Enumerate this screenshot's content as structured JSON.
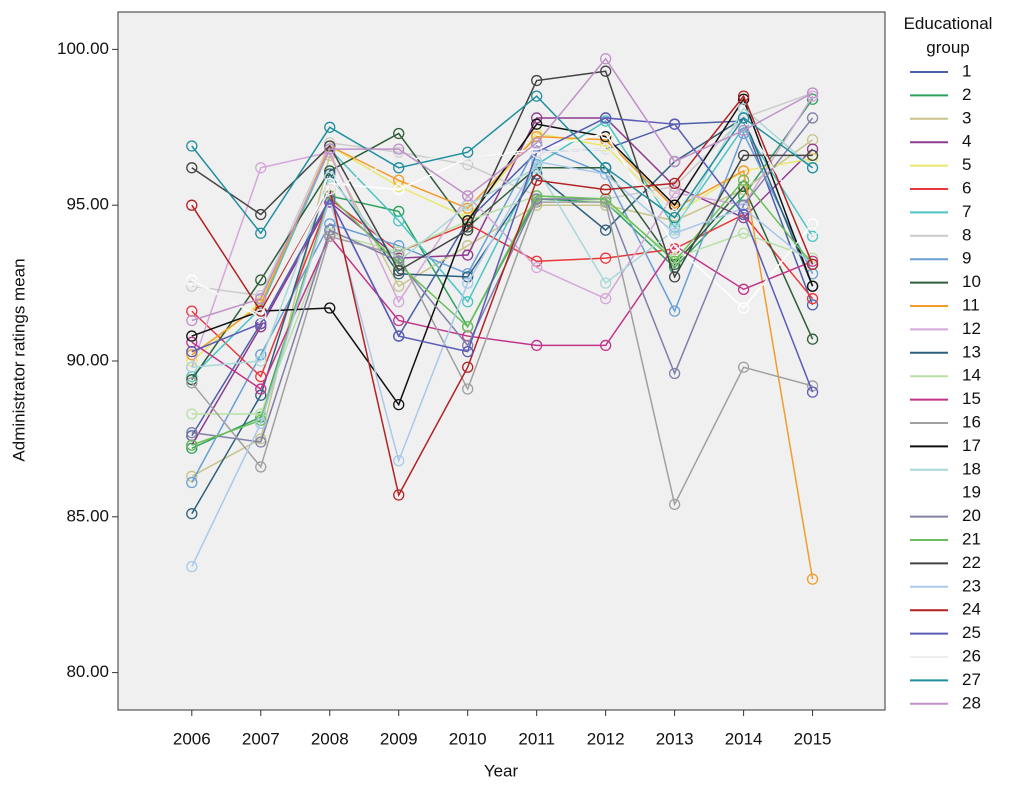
{
  "chart_data": {
    "type": "line",
    "x_label": "Year",
    "y_label": "Administrator ratings mean",
    "legend_title": "Educational group",
    "categories": [
      "2006",
      "2007",
      "2008",
      "2009",
      "2010",
      "2011",
      "2012",
      "2013",
      "2014",
      "2015"
    ],
    "ylim": [
      78.8,
      101.2
    ],
    "yticks": [
      {
        "value": 80,
        "label": "80.00"
      },
      {
        "value": 85,
        "label": "85.00"
      },
      {
        "value": 90,
        "label": "90.00"
      },
      {
        "value": 95,
        "label": "95.00"
      },
      {
        "value": 100,
        "label": "100.00"
      }
    ],
    "background": "#f0f0f0",
    "legend_position": "right",
    "series": [
      {
        "name": "1",
        "color": "#4c5fa8",
        "values": [
          87.6,
          91.2,
          95.2,
          90.8,
          94.5,
          96.7,
          96.8,
          97.6,
          97.7,
          91.8
        ]
      },
      {
        "name": "2",
        "color": "#2ca25f",
        "values": [
          87.2,
          88.2,
          95.3,
          94.8,
          91.1,
          95.2,
          95.1,
          93.0,
          95.3,
          98.4
        ]
      },
      {
        "name": "3",
        "color": "#c8c48a",
        "values": [
          86.3,
          87.5,
          96.6,
          92.4,
          93.7,
          95.0,
          95.0,
          94.5,
          95.5,
          97.1
        ]
      },
      {
        "name": "4",
        "color": "#8e3b8e",
        "values": [
          87.3,
          91.1,
          95.1,
          93.3,
          93.4,
          97.8,
          97.8,
          95.6,
          94.6,
          96.8
        ]
      },
      {
        "name": "5",
        "color": "#e8e86e",
        "values": [
          90.0,
          91.9,
          96.9,
          95.6,
          94.6,
          97.3,
          96.9,
          94.7,
          96.1,
          96.5
        ]
      },
      {
        "name": "6",
        "color": "#e8383d",
        "values": [
          91.6,
          89.5,
          95.2,
          93.5,
          94.4,
          93.2,
          93.3,
          93.6,
          94.7,
          92.0
        ]
      },
      {
        "name": "7",
        "color": "#4cc4c4",
        "values": [
          89.5,
          91.7,
          96.8,
          94.5,
          91.9,
          96.3,
          97.7,
          94.3,
          97.5,
          94.0
        ]
      },
      {
        "name": "8",
        "color": "#cccccc",
        "values": [
          92.4,
          92.1,
          97.0,
          96.7,
          96.3,
          95.3,
          95.2,
          95.6,
          97.8,
          98.6
        ]
      },
      {
        "name": "9",
        "color": "#6a9ed6",
        "values": [
          86.1,
          90.2,
          94.4,
          93.7,
          92.8,
          96.9,
          96.0,
          91.6,
          97.3,
          92.8
        ]
      },
      {
        "name": "10",
        "color": "#2f5e3a",
        "values": [
          89.4,
          92.6,
          96.1,
          97.3,
          94.3,
          96.2,
          96.2,
          93.1,
          95.6,
          90.7
        ]
      },
      {
        "name": "11",
        "color": "#f39c2b",
        "values": [
          90.2,
          91.8,
          96.9,
          95.8,
          94.9,
          97.2,
          97.1,
          94.9,
          96.1,
          83.0
        ]
      },
      {
        "name": "12",
        "color": "#d4a7d9",
        "values": [
          89.8,
          96.2,
          96.7,
          91.9,
          95.3,
          93.0,
          92.0,
          95.4,
          95.0,
          98.5
        ]
      },
      {
        "name": "13",
        "color": "#2f5f7f",
        "values": [
          85.1,
          88.9,
          96.0,
          92.8,
          92.7,
          96.0,
          94.2,
          96.4,
          97.8,
          92.4
        ]
      },
      {
        "name": "14",
        "color": "#b9e0a5",
        "values": [
          88.3,
          88.3,
          94.1,
          93.5,
          94.5,
          95.3,
          95.1,
          93.3,
          94.1,
          93.3
        ]
      },
      {
        "name": "15",
        "color": "#c2338a",
        "values": [
          90.6,
          89.1,
          94.0,
          91.3,
          90.8,
          90.5,
          90.5,
          93.7,
          92.3,
          93.2
        ]
      },
      {
        "name": "16",
        "color": "#a0a0a0",
        "values": [
          89.3,
          86.6,
          94.0,
          93.4,
          89.1,
          95.1,
          95.1,
          85.4,
          89.8,
          89.2
        ]
      },
      {
        "name": "17",
        "color": "#111111",
        "values": [
          90.8,
          91.6,
          91.7,
          88.6,
          94.5,
          97.6,
          97.2,
          95.0,
          98.4,
          92.4
        ]
      },
      {
        "name": "18",
        "color": "#a8d8d8",
        "values": [
          89.8,
          90.0,
          95.9,
          93.2,
          95.0,
          96.2,
          92.5,
          94.2,
          98.1,
          96.2
        ]
      },
      {
        "name": "19",
        "color": "#ffffff",
        "values": [
          92.6,
          91.4,
          95.7,
          95.5,
          96.5,
          96.8,
          97.3,
          93.7,
          91.7,
          94.4
        ]
      },
      {
        "name": "20",
        "color": "#8080a8",
        "values": [
          87.7,
          87.4,
          94.2,
          93.2,
          90.5,
          95.2,
          95.2,
          89.6,
          95.0,
          97.8
        ]
      },
      {
        "name": "21",
        "color": "#6bbf59",
        "values": [
          87.3,
          88.1,
          95.3,
          93.1,
          91.1,
          95.3,
          95.2,
          93.2,
          95.8,
          93.1
        ]
      },
      {
        "name": "22",
        "color": "#444444",
        "values": [
          96.2,
          94.7,
          96.9,
          92.9,
          94.2,
          99.0,
          99.3,
          92.7,
          96.6,
          96.6
        ]
      },
      {
        "name": "23",
        "color": "#a9c8ea",
        "values": [
          83.4,
          88.0,
          95.2,
          86.8,
          92.5,
          96.4,
          96.0,
          94.1,
          94.9,
          93.1
        ]
      },
      {
        "name": "24",
        "color": "#b22222",
        "values": [
          95.0,
          91.6,
          95.5,
          85.7,
          89.8,
          95.8,
          95.5,
          95.7,
          98.5,
          93.1
        ]
      },
      {
        "name": "25",
        "color": "#5b5bb8",
        "values": [
          90.3,
          91.2,
          95.2,
          90.8,
          90.3,
          96.7,
          97.8,
          97.6,
          94.7,
          89.0
        ]
      },
      {
        "name": "26",
        "color": "#eeeeee",
        "values": [
          92.5,
          91.5,
          95.5,
          96.5,
          96.5,
          96.7,
          96.8,
          94.7,
          97.7,
          94.2
        ]
      },
      {
        "name": "27",
        "color": "#1f8f9f",
        "values": [
          96.9,
          94.1,
          97.5,
          96.2,
          96.7,
          98.5,
          96.2,
          94.6,
          97.8,
          96.2
        ]
      },
      {
        "name": "28",
        "color": "#c090c8",
        "values": [
          91.3,
          92.0,
          96.8,
          96.8,
          95.3,
          97.0,
          99.7,
          96.4,
          97.4,
          98.6
        ]
      }
    ]
  }
}
